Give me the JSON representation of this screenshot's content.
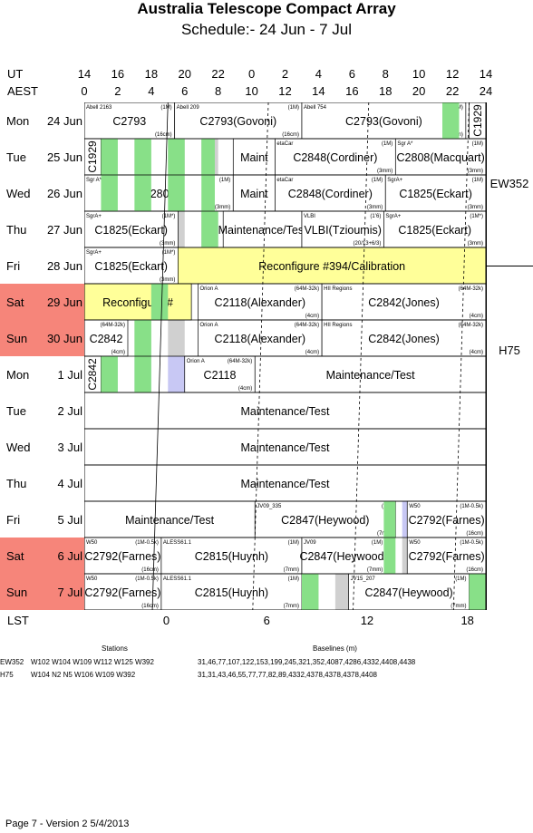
{
  "title": "Australia Telescope Compact Array",
  "subtitle": "Schedule:- 24 Jun - 7  Jul",
  "axis_ut_label": "UT",
  "axis_aest_label": "AEST",
  "axis_lst_label": "LST",
  "ut_ticks": [
    "14",
    "16",
    "18",
    "20",
    "22",
    "0",
    "2",
    "4",
    "6",
    "8",
    "10",
    "12",
    "14"
  ],
  "aest_ticks": [
    "0",
    "2",
    "4",
    "6",
    "8",
    "10",
    "12",
    "14",
    "16",
    "18",
    "20",
    "22",
    "24"
  ],
  "lst_ticks": [
    "0",
    "6",
    "12",
    "18"
  ],
  "days": [
    {
      "name": "Mon",
      "date": "24 Jun",
      "weekend": false
    },
    {
      "name": "Tue",
      "date": "25 Jun",
      "weekend": false
    },
    {
      "name": "Wed",
      "date": "26 Jun",
      "weekend": false
    },
    {
      "name": "Thu",
      "date": "27 Jun",
      "weekend": false
    },
    {
      "name": "Fri",
      "date": "28 Jun",
      "weekend": false
    },
    {
      "name": "Sat",
      "date": "29 Jun",
      "weekend": true
    },
    {
      "name": "Sun",
      "date": "30 Jun",
      "weekend": true
    },
    {
      "name": "Mon",
      "date": "1  Jul",
      "weekend": false
    },
    {
      "name": "Tue",
      "date": "2  Jul",
      "weekend": false
    },
    {
      "name": "Wed",
      "date": "3  Jul",
      "weekend": false
    },
    {
      "name": "Thu",
      "date": "4  Jul",
      "weekend": false
    },
    {
      "name": "Fri",
      "date": "5  Jul",
      "weekend": false
    },
    {
      "name": "Sat",
      "date": "6  Jul",
      "weekend": true
    },
    {
      "name": "Sun",
      "date": "7  Jul",
      "weekend": true
    }
  ],
  "configs": [
    {
      "label": "EW352",
      "row_start": 0,
      "row_end": 4
    },
    {
      "label": "H75",
      "row_start": 4,
      "row_end": 14
    }
  ],
  "blocks": [
    {
      "row": 0,
      "start": 0,
      "end": 5.4,
      "label": "C2793",
      "target": "Abell 2163",
      "conf": "(1M)",
      "band": "(16cm)"
    },
    {
      "row": 0,
      "start": 5.4,
      "end": 13.0,
      "label": "C2793(Govoni)",
      "target": "Abell 209",
      "conf": "(1M)",
      "band": "(16cm)"
    },
    {
      "row": 0,
      "start": 13.0,
      "end": 22.8,
      "label": "C2793(Govoni)",
      "target": "Abell 754",
      "conf": "(1M)",
      "band": "(16cm)"
    },
    {
      "row": 0,
      "start": 23.0,
      "end": 24.0,
      "label": "C1929",
      "vertical": true
    },
    {
      "row": 1,
      "start": 0,
      "end": 1.0,
      "label": "C1929",
      "vertical": true
    },
    {
      "row": 1,
      "start": 8.9,
      "end": 11.4,
      "label": "Maint"
    },
    {
      "row": 1,
      "start": 11.4,
      "end": 18.6,
      "label": "C2848(Cordiner)",
      "target": "etaCar",
      "conf": "(1M)",
      "band": "(3mm)"
    },
    {
      "row": 1,
      "start": 18.6,
      "end": 24.0,
      "label": "C2808(Macquart)",
      "target": "Sgr A*",
      "conf": "(1M)",
      "band": "(3mm)"
    },
    {
      "row": 2,
      "start": 0,
      "end": 8.9,
      "label": "C2808",
      "target": "Sgr A*",
      "conf": "(1M)",
      "band": "(3mm)"
    },
    {
      "row": 2,
      "start": 8.9,
      "end": 11.4,
      "label": "Maint"
    },
    {
      "row": 2,
      "start": 11.4,
      "end": 18.0,
      "label": "C2848(Cordiner)",
      "target": "etaCar",
      "conf": "(1M)",
      "band": "(3mm)"
    },
    {
      "row": 2,
      "start": 18.0,
      "end": 24.0,
      "label": "C1825(Eckart)",
      "target": "SgrA+",
      "conf": "(1M)",
      "band": "(3mm)"
    },
    {
      "row": 3,
      "start": 0,
      "end": 5.6,
      "label": "C1825(Eckart)",
      "target": "SgrA+",
      "conf": "(1M*)",
      "band": "(3mm)"
    },
    {
      "row": 3,
      "start": 8.3,
      "end": 13.0,
      "label": "Maintenance/Test"
    },
    {
      "row": 3,
      "start": 13.0,
      "end": 17.9,
      "label": "VLBI(Tzioumis)",
      "target": "VLBI",
      "conf": "(1’6)",
      "band": "(20/13+6/3)"
    },
    {
      "row": 3,
      "start": 17.9,
      "end": 24.0,
      "label": "C1825(Eckart)",
      "target": "SgrA+",
      "conf": "(1M*)",
      "band": "(3mm)"
    },
    {
      "row": 4,
      "start": 0,
      "end": 5.6,
      "label": "C1825(Eckart)",
      "target": "SgrA+",
      "conf": "(1M*)",
      "band": "(3mm)"
    },
    {
      "row": 4,
      "start": 5.6,
      "end": 24.0,
      "label": "Reconfigure #394/Calibration",
      "fill": "#ffff99"
    },
    {
      "row": 5,
      "start": 0,
      "end": 6.4,
      "label": "Reconfigure #",
      "fill": "#ffff99"
    },
    {
      "row": 5,
      "start": 6.8,
      "end": 14.2,
      "label": "C2118(Alexander)",
      "target": "Orion A",
      "conf": "(64M-32k)",
      "band": "(4cm)"
    },
    {
      "row": 5,
      "start": 14.2,
      "end": 24.0,
      "label": "C2842(Jones)",
      "target": "HII Regions",
      "conf": "(64M-32k)",
      "band": "(4cm)"
    },
    {
      "row": 6,
      "start": 0,
      "end": 2.6,
      "label": "C2842",
      "conf": "(64M-32k)",
      "band": "(4cm)"
    },
    {
      "row": 6,
      "start": 6.8,
      "end": 14.2,
      "label": "C2118(Alexander)",
      "target": "Orion A",
      "conf": "(64M-32k)",
      "band": "(4cm)"
    },
    {
      "row": 6,
      "start": 14.2,
      "end": 24.0,
      "label": "C2842(Jones)",
      "target": "HII Regions",
      "conf": "(64M-32k)",
      "band": "(4cm)"
    },
    {
      "row": 7,
      "start": 0,
      "end": 1.0,
      "label": "C2842",
      "vertical": true
    },
    {
      "row": 7,
      "start": 6.0,
      "end": 10.2,
      "label": "C2118",
      "target": "Orion A",
      "conf": "(64M-32k)",
      "band": "(4cm)"
    },
    {
      "row": 7,
      "start": 10.2,
      "end": 24.0,
      "label": "Maintenance/Test"
    },
    {
      "row": 8,
      "start": 0,
      "end": 24.0,
      "label": "Maintenance/Test"
    },
    {
      "row": 9,
      "start": 0,
      "end": 24.0,
      "label": "Maintenance/Test"
    },
    {
      "row": 10,
      "start": 0,
      "end": 24.0,
      "label": "Maintenance/Test"
    },
    {
      "row": 11,
      "start": 0,
      "end": 10.2,
      "label": "Maintenance/Test"
    },
    {
      "row": 11,
      "start": 10.2,
      "end": 18.6,
      "label": "C2847(Heywood)",
      "target": "JV09_335",
      "conf": "(1M)",
      "band": "(7mm)"
    },
    {
      "row": 11,
      "start": 19.3,
      "end": 24.0,
      "label": "C2792(Farnes)",
      "target": "W50",
      "conf": "(1M-0.5k)",
      "band": "(16cm)"
    },
    {
      "row": 12,
      "start": 0,
      "end": 4.6,
      "label": "C2792(Farnes)",
      "target": "W50",
      "conf": "(1M-0.5k)",
      "band": "(16cm)"
    },
    {
      "row": 12,
      "start": 4.6,
      "end": 13.0,
      "label": "C2815(Huynh)",
      "target": "ALESS61.1",
      "conf": "(1M)",
      "band": "(7mm)"
    },
    {
      "row": 12,
      "start": 13.0,
      "end": 18.0,
      "label": "C2847(Heywood)",
      "target": "JV09",
      "conf": "(1M)",
      "band": "(7mm)"
    },
    {
      "row": 12,
      "start": 19.3,
      "end": 24.0,
      "label": "C2792(Farnes)",
      "target": "W50",
      "conf": "(1M-0.5k)",
      "band": "(16cm)"
    },
    {
      "row": 13,
      "start": 0,
      "end": 4.6,
      "label": "C2792(Farnes)",
      "target": "W50",
      "conf": "(1M-0.5k)",
      "band": "(16cm)"
    },
    {
      "row": 13,
      "start": 4.6,
      "end": 13.0,
      "label": "C2815(Huynh)",
      "target": "ALESS61.1",
      "conf": "(1M)",
      "band": "(7mm)"
    },
    {
      "row": 13,
      "start": 15.8,
      "end": 23.0,
      "label": "C2847(Heywood)",
      "target": "JV15_207",
      "conf": "(1M)",
      "band": "(7mm)"
    }
  ],
  "green_slots": [
    {
      "row": 0,
      "start": 21.4,
      "end": 22.4
    },
    {
      "row": 1,
      "start": 1.0,
      "end": 2.0
    },
    {
      "row": 1,
      "start": 3.0,
      "end": 4.0
    },
    {
      "row": 1,
      "start": 5.0,
      "end": 6.0
    },
    {
      "row": 1,
      "start": 7.0,
      "end": 7.8
    },
    {
      "row": 2,
      "start": 1.0,
      "end": 2.0
    },
    {
      "row": 2,
      "start": 3.0,
      "end": 4.0
    },
    {
      "row": 2,
      "start": 5.0,
      "end": 6.0
    },
    {
      "row": 2,
      "start": 7.0,
      "end": 7.8
    },
    {
      "row": 3,
      "start": 7.0,
      "end": 8.0
    },
    {
      "row": 5,
      "start": 4.0,
      "end": 5.0
    },
    {
      "row": 6,
      "start": 3.0,
      "end": 4.0
    },
    {
      "row": 7,
      "start": 1.0,
      "end": 2.0
    },
    {
      "row": 7,
      "start": 3.0,
      "end": 4.0
    },
    {
      "row": 11,
      "start": 17.9,
      "end": 18.6
    },
    {
      "row": 12,
      "start": 17.9,
      "end": 18.6
    },
    {
      "row": 13,
      "start": 13.0,
      "end": 14.0
    },
    {
      "row": 13,
      "start": 23.0,
      "end": 24.0
    }
  ],
  "footnote_stations_header": "Stations",
  "footnote_baselines_header": "Baselines (m)",
  "footnotes": [
    {
      "config": "EW352",
      "stations": "W102 W104 W109 W112 W125 W392",
      "baselines": "31,46,77,107,122,153,199,245,321,352,4087,4286,4332,4408,4438"
    },
    {
      "config": "H75",
      "stations": "W104 N2 N5 W106 W109 W392",
      "baselines": "31,31,43,46,55,77,77,82,89,4332,4378,4378,4378,4408"
    }
  ],
  "footer": "Page 7 - Version 2  5/4/2013",
  "colors": {
    "weekend": "#f6857a",
    "gray": "#d0d0d0",
    "lavender": "#c8c8f4",
    "green": "#88e088",
    "yellow": "#ffff99"
  }
}
